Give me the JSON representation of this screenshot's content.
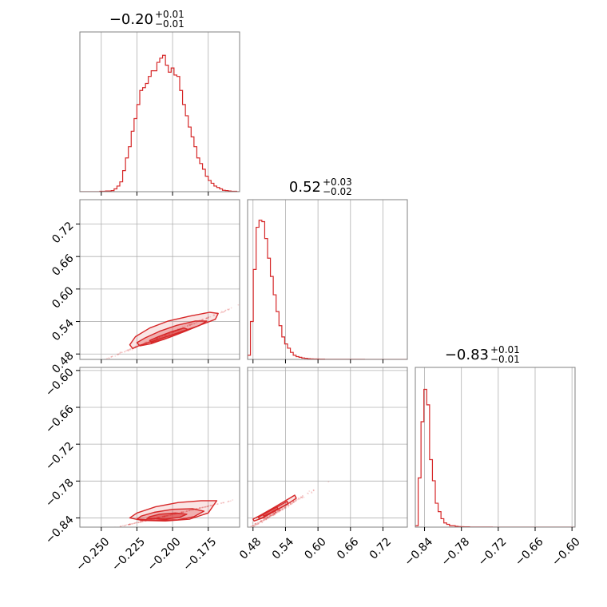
{
  "chart_data": {
    "type": "corner",
    "color": "#d62728",
    "grid": true,
    "parameters": [
      {
        "title": {
          "median": "−0.20",
          "plus": "+0.01",
          "minus": "−0.01"
        },
        "range": [
          -0.265,
          -0.153
        ],
        "ticks": [
          -0.25,
          -0.225,
          -0.2,
          -0.175
        ],
        "tick_labels": [
          "−0.250",
          "−0.225",
          "−0.200",
          "−0.175"
        ],
        "hist": [
          0,
          0,
          0,
          0,
          0,
          0,
          0,
          0.003,
          0.003,
          0.005,
          0.005,
          0.008,
          0.02,
          0.04,
          0.07,
          0.15,
          0.24,
          0.32,
          0.43,
          0.52,
          0.62,
          0.72,
          0.74,
          0.77,
          0.82,
          0.86,
          0.86,
          0.92,
          0.95,
          0.97,
          0.9,
          0.85,
          0.88,
          0.83,
          0.82,
          0.72,
          0.62,
          0.54,
          0.46,
          0.39,
          0.32,
          0.24,
          0.2,
          0.16,
          0.11,
          0.08,
          0.06,
          0.04,
          0.03,
          0.02,
          0.01,
          0.008,
          0.005,
          0.003,
          0.003,
          0
        ]
      },
      {
        "title": {
          "median": "0.52",
          "plus": "+0.03",
          "minus": "−0.02"
        },
        "range": [
          0.47,
          0.765
        ],
        "ticks": [
          0.48,
          0.54,
          0.6,
          0.66,
          0.72
        ],
        "tick_labels": [
          "0.48",
          "0.54",
          "0.60",
          "0.66",
          "0.72"
        ],
        "hist": [
          0.03,
          0.27,
          0.64,
          0.94,
          0.99,
          0.98,
          0.86,
          0.72,
          0.59,
          0.46,
          0.34,
          0.24,
          0.16,
          0.11,
          0.08,
          0.05,
          0.03,
          0.02,
          0.015,
          0.01,
          0.008,
          0.005,
          0.004,
          0.003,
          0.003,
          0.002,
          0.002,
          0.001,
          0.001,
          0.001,
          0.001,
          0.001,
          0.001,
          0.001,
          0.001,
          0.001,
          0.001,
          0.001,
          0.001,
          0.001,
          0.001,
          0,
          0,
          0,
          0,
          0,
          0,
          0,
          0,
          0,
          0,
          0,
          0,
          0,
          0,
          0
        ]
      },
      {
        "title": {
          "median": "−0.83",
          "plus": "+0.01",
          "minus": "−0.01"
        },
        "range": [
          -0.855,
          -0.595
        ],
        "ticks": [
          -0.84,
          -0.78,
          -0.72,
          -0.66,
          -0.6
        ],
        "tick_labels": [
          "−0.84",
          "−0.78",
          "−0.72",
          "−0.66",
          "−0.60"
        ],
        "hist": [
          0.01,
          0.35,
          0.75,
          0.98,
          0.87,
          0.48,
          0.33,
          0.17,
          0.11,
          0.06,
          0.03,
          0.02,
          0.01,
          0.01,
          0.006,
          0.004,
          0.003,
          0.002,
          0.002,
          0.001,
          0.001,
          0.001,
          0.001,
          0.001,
          0.001,
          0.001,
          0.001,
          0,
          0,
          0,
          0,
          0,
          0,
          0,
          0,
          0,
          0,
          0,
          0,
          0,
          0,
          0,
          0,
          0,
          0,
          0,
          0,
          0,
          0,
          0,
          0,
          0,
          0,
          0,
          0,
          0
        ]
      }
    ],
    "pairs": [
      {
        "x_param": 0,
        "y_param": 1,
        "center": [
          -0.205,
          0.515
        ],
        "scatter_spread": [
          0.025,
          0.045
        ],
        "contours": [
          [
            [
              -0.228,
              0.49
            ],
            [
              -0.223,
              0.496
            ],
            [
              -0.21,
              0.507
            ],
            [
              -0.195,
              0.52
            ],
            [
              -0.182,
              0.532
            ],
            [
              -0.17,
              0.544
            ],
            [
              -0.168,
              0.555
            ],
            [
              -0.174,
              0.557
            ],
            [
              -0.188,
              0.55
            ],
            [
              -0.203,
              0.541
            ],
            [
              -0.216,
              0.528
            ],
            [
              -0.226,
              0.512
            ],
            [
              -0.23,
              0.497
            ]
          ],
          [
            [
              -0.223,
              0.495
            ],
            [
              -0.215,
              0.499
            ],
            [
              -0.203,
              0.51
            ],
            [
              -0.191,
              0.522
            ],
            [
              -0.181,
              0.533
            ],
            [
              -0.176,
              0.541
            ],
            [
              -0.184,
              0.541
            ],
            [
              -0.197,
              0.533
            ],
            [
              -0.209,
              0.522
            ],
            [
              -0.219,
              0.51
            ],
            [
              -0.225,
              0.501
            ]
          ],
          [
            [
              -0.215,
              0.501
            ],
            [
              -0.206,
              0.507
            ],
            [
              -0.197,
              0.516
            ],
            [
              -0.189,
              0.525
            ],
            [
              -0.192,
              0.528
            ],
            [
              -0.201,
              0.521
            ],
            [
              -0.21,
              0.512
            ],
            [
              -0.216,
              0.505
            ]
          ]
        ]
      },
      {
        "x_param": 0,
        "y_param": 2,
        "center": [
          -0.205,
          -0.837
        ],
        "scatter_spread": [
          0.028,
          0.03
        ],
        "contours": [
          [
            [
              -0.23,
              -0.84
            ],
            [
              -0.222,
              -0.844
            ],
            [
              -0.205,
              -0.845
            ],
            [
              -0.188,
              -0.842
            ],
            [
              -0.175,
              -0.832
            ],
            [
              -0.169,
              -0.812
            ],
            [
              -0.18,
              -0.812
            ],
            [
              -0.196,
              -0.815
            ],
            [
              -0.212,
              -0.822
            ],
            [
              -0.225,
              -0.832
            ]
          ],
          [
            [
              -0.225,
              -0.842
            ],
            [
              -0.212,
              -0.844
            ],
            [
              -0.196,
              -0.843
            ],
            [
              -0.185,
              -0.838
            ],
            [
              -0.178,
              -0.829
            ],
            [
              -0.186,
              -0.825
            ],
            [
              -0.2,
              -0.826
            ],
            [
              -0.213,
              -0.831
            ],
            [
              -0.222,
              -0.837
            ]
          ],
          [
            [
              -0.218,
              -0.841
            ],
            [
              -0.205,
              -0.842
            ],
            [
              -0.195,
              -0.839
            ],
            [
              -0.19,
              -0.834
            ],
            [
              -0.198,
              -0.832
            ],
            [
              -0.209,
              -0.834
            ],
            [
              -0.216,
              -0.838
            ]
          ]
        ]
      },
      {
        "x_param": 1,
        "y_param": 2,
        "center": [
          0.515,
          -0.835
        ],
        "scatter_spread": [
          0.04,
          0.02
        ],
        "contours": [
          [
            [
              0.482,
              -0.845
            ],
            [
              0.498,
              -0.84
            ],
            [
              0.522,
              -0.828
            ],
            [
              0.548,
              -0.815
            ],
            [
              0.56,
              -0.808
            ],
            [
              0.557,
              -0.803
            ],
            [
              0.54,
              -0.812
            ],
            [
              0.515,
              -0.825
            ],
            [
              0.493,
              -0.836
            ],
            [
              0.48,
              -0.842
            ]
          ],
          [
            [
              0.492,
              -0.842
            ],
            [
              0.51,
              -0.834
            ],
            [
              0.53,
              -0.824
            ],
            [
              0.545,
              -0.817
            ],
            [
              0.543,
              -0.813
            ],
            [
              0.527,
              -0.821
            ],
            [
              0.506,
              -0.831
            ],
            [
              0.49,
              -0.839
            ]
          ],
          [
            [
              0.5,
              -0.837
            ],
            [
              0.514,
              -0.831
            ],
            [
              0.526,
              -0.825
            ],
            [
              0.524,
              -0.822
            ],
            [
              0.511,
              -0.828
            ],
            [
              0.498,
              -0.834
            ]
          ]
        ]
      }
    ]
  }
}
